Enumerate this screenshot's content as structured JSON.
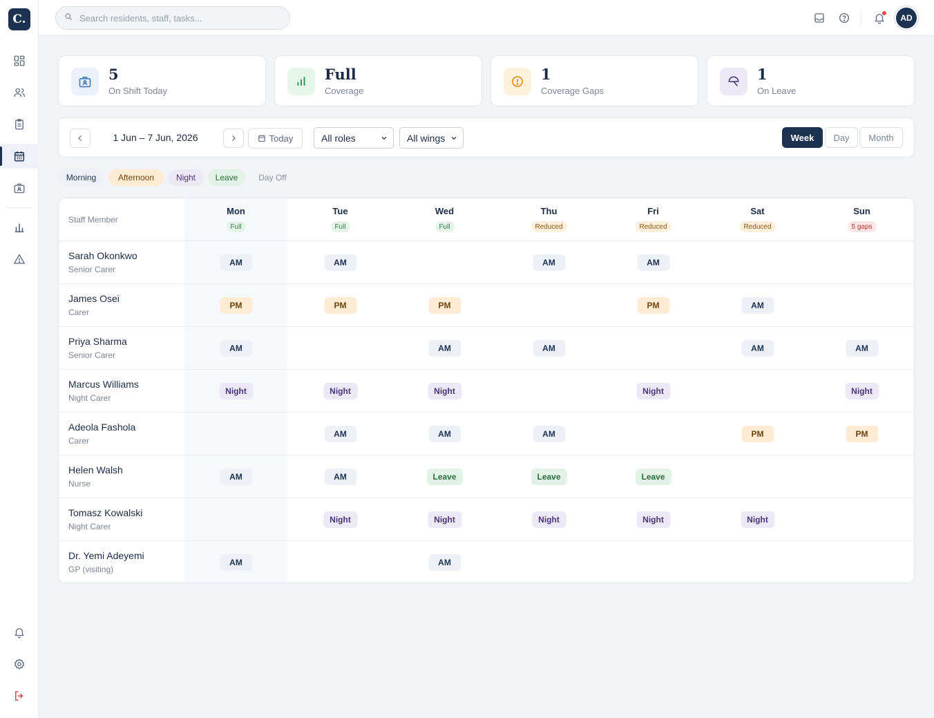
{
  "logo": "C.",
  "search": {
    "placeholder": "Search residents, staff, tasks..."
  },
  "user": {
    "initials": "AD"
  },
  "stats": [
    {
      "value": "5",
      "label": "On Shift Today",
      "icon": "id-badge-icon",
      "color": "#3b6fb0",
      "bg": "#eaf1fa"
    },
    {
      "value": "Full",
      "label": "Coverage",
      "icon": "bar-chart-icon",
      "color": "#2e9a52",
      "bg": "#e5f5ea"
    },
    {
      "value": "1",
      "label": "Coverage Gaps",
      "icon": "alert-circle-icon",
      "color": "#d98a14",
      "bg": "#fdf1dc"
    },
    {
      "value": "1",
      "label": "On Leave",
      "icon": "umbrella-icon",
      "color": "#4a3576",
      "bg": "#ece8f5"
    }
  ],
  "toolbar": {
    "date_range": "1 Jun – 7 Jun, 2026",
    "today_label": "Today",
    "roles_select": "All roles",
    "wings_select": "All wings",
    "views": [
      "Week",
      "Day",
      "Month"
    ],
    "active_view": "Week"
  },
  "legend": [
    {
      "label": "Morning",
      "bg": "#edf1f7",
      "color": "#1d3150"
    },
    {
      "label": "Afternoon",
      "bg": "#fdecd3",
      "color": "#6e4210"
    },
    {
      "label": "Night",
      "bg": "#ece8f5",
      "color": "#4a3576"
    },
    {
      "label": "Leave",
      "bg": "#e3f2e6",
      "color": "#2b6e3e"
    },
    {
      "label": "Day Off",
      "bg": "transparent",
      "color": "#8a93a1"
    }
  ],
  "grid": {
    "staff_header": "Staff Member",
    "days": [
      {
        "name": "Mon",
        "coverage": "Full",
        "status": "full"
      },
      {
        "name": "Tue",
        "coverage": "Full",
        "status": "full"
      },
      {
        "name": "Wed",
        "coverage": "Full",
        "status": "full"
      },
      {
        "name": "Thu",
        "coverage": "Reduced",
        "status": "reduced"
      },
      {
        "name": "Fri",
        "coverage": "Reduced",
        "status": "reduced"
      },
      {
        "name": "Sat",
        "coverage": "Reduced",
        "status": "reduced"
      },
      {
        "name": "Sun",
        "coverage": "5 gaps",
        "status": "gaps"
      }
    ],
    "staff": [
      {
        "name": "Sarah Okonkwo",
        "role": "Senior Carer",
        "shifts": [
          "AM",
          "AM",
          "",
          "AM",
          "AM",
          "",
          ""
        ]
      },
      {
        "name": "James Osei",
        "role": "Carer",
        "shifts": [
          "PM",
          "PM",
          "PM",
          "",
          "PM",
          "AM",
          ""
        ]
      },
      {
        "name": "Priya Sharma",
        "role": "Senior Carer",
        "shifts": [
          "AM",
          "",
          "AM",
          "AM",
          "",
          "AM",
          "AM"
        ]
      },
      {
        "name": "Marcus Williams",
        "role": "Night Carer",
        "shifts": [
          "Night",
          "Night",
          "Night",
          "",
          "Night",
          "",
          "Night"
        ]
      },
      {
        "name": "Adeola Fashola",
        "role": "Carer",
        "shifts": [
          "",
          "AM",
          "AM",
          "AM",
          "",
          "PM",
          "PM"
        ]
      },
      {
        "name": "Helen Walsh",
        "role": "Nurse",
        "shifts": [
          "AM",
          "AM",
          "Leave",
          "Leave",
          "Leave",
          "",
          ""
        ]
      },
      {
        "name": "Tomasz Kowalski",
        "role": "Night Carer",
        "shifts": [
          "",
          "Night",
          "Night",
          "Night",
          "Night",
          "Night",
          ""
        ]
      },
      {
        "name": "Dr. Yemi Adeyemi",
        "role": "GP (visiting)",
        "shifts": [
          "AM",
          "",
          "AM",
          "",
          "",
          "",
          ""
        ]
      }
    ]
  }
}
